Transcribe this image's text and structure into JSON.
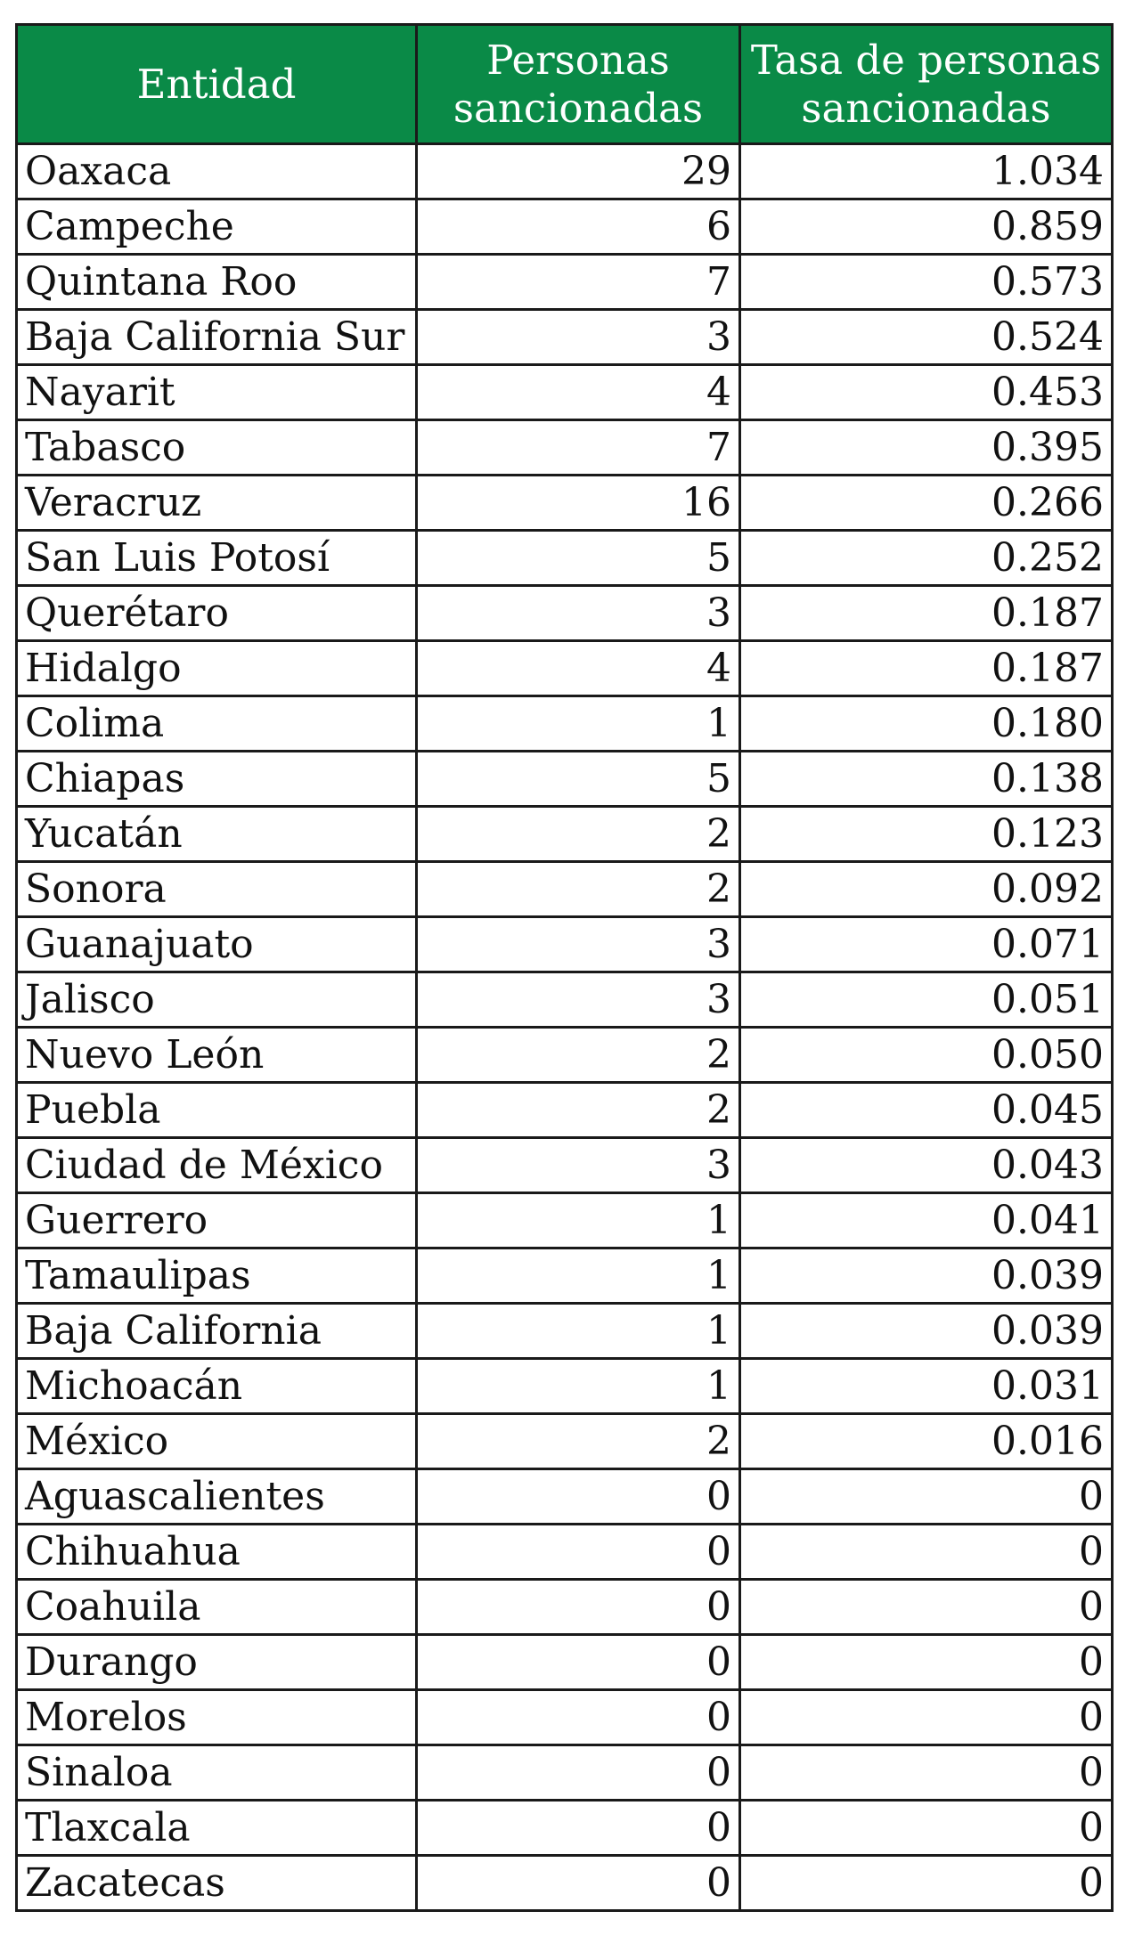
{
  "header_color": "#0a8a47",
  "table": {
    "headers": {
      "entity": "Entidad",
      "persons": "Personas sancionadas",
      "rate": "Tasa de personas sancionadas"
    },
    "rows": [
      {
        "entity": "Oaxaca",
        "persons": "29",
        "rate": "1.034"
      },
      {
        "entity": "Campeche",
        "persons": "6",
        "rate": "0.859"
      },
      {
        "entity": "Quintana Roo",
        "persons": "7",
        "rate": "0.573"
      },
      {
        "entity": "Baja California Sur",
        "persons": "3",
        "rate": "0.524"
      },
      {
        "entity": "Nayarit",
        "persons": "4",
        "rate": "0.453"
      },
      {
        "entity": "Tabasco",
        "persons": "7",
        "rate": "0.395"
      },
      {
        "entity": "Veracruz",
        "persons": "16",
        "rate": "0.266"
      },
      {
        "entity": "San Luis Potosí",
        "persons": "5",
        "rate": "0.252"
      },
      {
        "entity": "Querétaro",
        "persons": "3",
        "rate": "0.187"
      },
      {
        "entity": "Hidalgo",
        "persons": "4",
        "rate": "0.187"
      },
      {
        "entity": "Colima",
        "persons": "1",
        "rate": "0.180"
      },
      {
        "entity": "Chiapas",
        "persons": "5",
        "rate": "0.138"
      },
      {
        "entity": "Yucatán",
        "persons": "2",
        "rate": "0.123"
      },
      {
        "entity": "Sonora",
        "persons": "2",
        "rate": "0.092"
      },
      {
        "entity": "Guanajuato",
        "persons": "3",
        "rate": "0.071"
      },
      {
        "entity": "Jalisco",
        "persons": "3",
        "rate": "0.051"
      },
      {
        "entity": "Nuevo León",
        "persons": "2",
        "rate": "0.050"
      },
      {
        "entity": "Puebla",
        "persons": "2",
        "rate": "0.045"
      },
      {
        "entity": "Ciudad de México",
        "persons": "3",
        "rate": "0.043"
      },
      {
        "entity": "Guerrero",
        "persons": "1",
        "rate": "0.041"
      },
      {
        "entity": "Tamaulipas",
        "persons": "1",
        "rate": "0.039"
      },
      {
        "entity": "Baja California",
        "persons": "1",
        "rate": "0.039"
      },
      {
        "entity": "Michoacán",
        "persons": "1",
        "rate": "0.031"
      },
      {
        "entity": "México",
        "persons": "2",
        "rate": "0.016"
      },
      {
        "entity": "Aguascalientes",
        "persons": "0",
        "rate": "0"
      },
      {
        "entity": "Chihuahua",
        "persons": "0",
        "rate": "0"
      },
      {
        "entity": "Coahuila",
        "persons": "0",
        "rate": "0"
      },
      {
        "entity": "Durango",
        "persons": "0",
        "rate": "0"
      },
      {
        "entity": "Morelos",
        "persons": "0",
        "rate": "0"
      },
      {
        "entity": "Sinaloa",
        "persons": "0",
        "rate": "0"
      },
      {
        "entity": "Tlaxcala",
        "persons": "0",
        "rate": "0"
      },
      {
        "entity": "Zacatecas",
        "persons": "0",
        "rate": "0"
      }
    ]
  }
}
